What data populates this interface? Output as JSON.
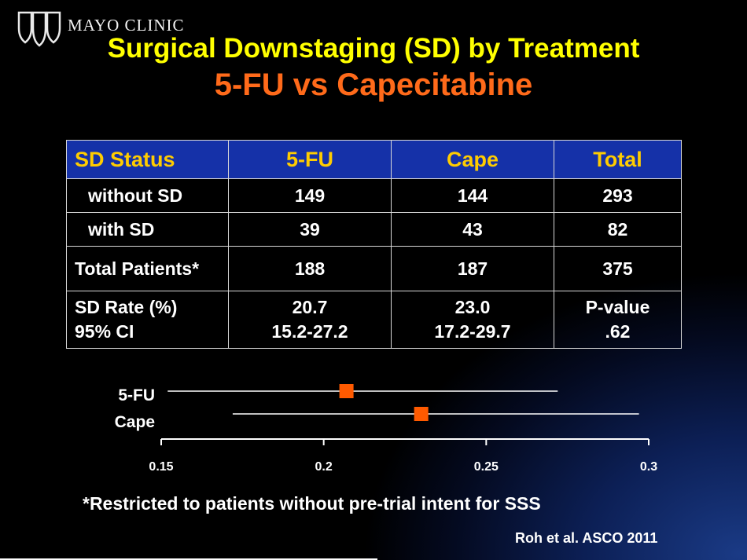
{
  "logo": {
    "name": "MAYO CLINIC",
    "icon": "mayo-shields-icon"
  },
  "title": "Surgical Downstaging (SD) by Treatment",
  "subtitle": "5-FU vs Capecitabine",
  "table": {
    "headers": [
      "SD Status",
      "5-FU",
      "Cape",
      "Total"
    ],
    "rows": [
      {
        "label": "without SD",
        "cells": [
          "149",
          "144",
          "293"
        ]
      },
      {
        "label": "with SD",
        "cells": [
          "39",
          "43",
          "82"
        ]
      },
      {
        "label": "Total Patients*",
        "cells": [
          "188",
          "187",
          "375"
        ]
      },
      {
        "label_line1": "SD Rate (%)",
        "label_line2": "95% CI",
        "cells": [
          {
            "line1": "20.7",
            "line2": "15.2-27.2"
          },
          {
            "line1": "23.0",
            "line2": "17.2-29.7"
          },
          {
            "line1": "P-value",
            "line2": ".62"
          }
        ]
      }
    ]
  },
  "chart_data": {
    "type": "scatter",
    "series": [
      {
        "name": "5-FU",
        "estimate": 0.207,
        "ci_low": 0.152,
        "ci_high": 0.272
      },
      {
        "name": "Cape",
        "estimate": 0.23,
        "ci_low": 0.172,
        "ci_high": 0.297
      }
    ],
    "xlim": [
      0.15,
      0.3
    ],
    "x_ticks": [
      "0.15",
      "0.2",
      "0.25",
      "0.3"
    ],
    "marker_color": "#ff5a00",
    "line_color": "#ffffff"
  },
  "footnote": "*Restricted to patients without pre-trial intent for SSS",
  "citation": "Roh et al. ASCO 2011"
}
